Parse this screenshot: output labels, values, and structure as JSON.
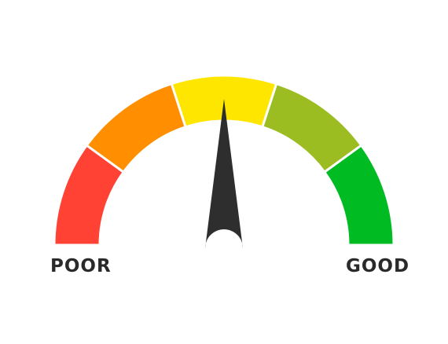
{
  "gauge": {
    "type": "speedometer-rating-gauge",
    "value_percent": 50,
    "segments": [
      {
        "name": "red",
        "color": "#ff4233"
      },
      {
        "name": "orange",
        "color": "#ff8f00"
      },
      {
        "name": "yellow",
        "color": "#ffe600"
      },
      {
        "name": "yellow-green",
        "color": "#9bbd22"
      },
      {
        "name": "green",
        "color": "#00bb22"
      }
    ],
    "needle_color": "#2e2e2e",
    "separator_color": "#ffffff"
  },
  "labels": {
    "left": "POOR",
    "right": "GOOD"
  }
}
